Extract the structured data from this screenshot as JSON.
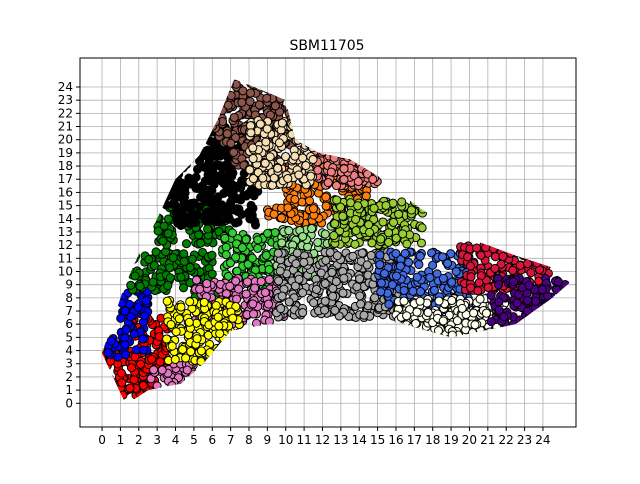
{
  "chart_data": {
    "type": "scatter",
    "title": "SBM11705",
    "xlabel": "",
    "ylabel": "",
    "xlim": [
      -1.2,
      25.8
    ],
    "ylim": [
      -1.8,
      26.2
    ],
    "x_ticks": [
      "0",
      "1",
      "2",
      "3",
      "4",
      "5",
      "6",
      "7",
      "8",
      "9",
      "10",
      "11",
      "12",
      "13",
      "14",
      "15",
      "16",
      "17",
      "18",
      "19",
      "20",
      "21",
      "22",
      "23",
      "24"
    ],
    "y_ticks": [
      "0",
      "1",
      "2",
      "3",
      "4",
      "5",
      "6",
      "7",
      "8",
      "9",
      "10",
      "11",
      "12",
      "13",
      "14",
      "15",
      "16",
      "17",
      "18",
      "19",
      "20",
      "21",
      "22",
      "23",
      "24"
    ],
    "grid": true,
    "legend": "none",
    "point_style": {
      "edge_color": "#000000",
      "radius_data_units": 0.22
    },
    "series": [
      {
        "color": "#ff0000",
        "regions": [
          [
            0.0,
            0.5,
            3.2,
            4.0
          ],
          [
            1.5,
            2.5,
            3.8,
            6.5
          ]
        ],
        "density": 3
      },
      {
        "color": "#0000ff",
        "regions": [
          [
            1.0,
            4.0,
            2.5,
            8.6
          ],
          [
            0.3,
            3.5,
            1.3,
            5.0
          ]
        ],
        "density": 3
      },
      {
        "color": "#008000",
        "regions": [
          [
            1.5,
            8.5,
            6.0,
            11.5
          ],
          [
            3.0,
            12.0,
            7.0,
            15.0
          ],
          [
            5.0,
            8.0,
            6.5,
            9.0
          ]
        ],
        "density": 3
      },
      {
        "color": "#000000",
        "regions": [
          [
            4.0,
            13.5,
            8.5,
            19.5
          ],
          [
            5.0,
            19.0,
            8.0,
            21.0
          ],
          [
            3.0,
            15.0,
            4.5,
            17.0
          ]
        ],
        "density": 3
      },
      {
        "color": "#8c564b",
        "regions": [
          [
            6.0,
            19.5,
            10.5,
            25.0
          ],
          [
            7.0,
            18.0,
            10.0,
            20.0
          ]
        ],
        "density": 3
      },
      {
        "color": "#ff7f0e",
        "regions": [
          [
            10.0,
            13.5,
            14.5,
            18.0
          ],
          [
            9.0,
            14.0,
            10.5,
            15.5
          ]
        ],
        "density": 3
      },
      {
        "color": "#f08080",
        "regions": [
          [
            11.5,
            16.5,
            15.0,
            19.5
          ]
        ],
        "density": 4
      },
      {
        "color": "#f5deb3",
        "regions": [
          [
            8.0,
            16.5,
            11.5,
            21.5
          ]
        ],
        "density": 4
      },
      {
        "color": "#32cd32",
        "regions": [
          [
            6.5,
            8.5,
            10.0,
            13.0
          ]
        ],
        "density": 3
      },
      {
        "color": "#98df8a",
        "regions": [
          [
            9.5,
            9.5,
            12.5,
            13.5
          ]
        ],
        "density": 3
      },
      {
        "color": "#9acd32",
        "regions": [
          [
            12.5,
            12.0,
            17.5,
            15.5
          ]
        ],
        "density": 4
      },
      {
        "color": "#e377c2",
        "regions": [
          [
            5.0,
            6.0,
            10.0,
            9.5
          ],
          [
            2.5,
            1.3,
            5.0,
            3.0
          ]
        ],
        "density": 3
      },
      {
        "color": "#ffff00",
        "regions": [
          [
            3.5,
            3.0,
            7.5,
            7.8
          ]
        ],
        "density": 3
      },
      {
        "color": "#a9a9a9",
        "regions": [
          [
            9.5,
            6.5,
            16.0,
            11.5
          ],
          [
            15.0,
            7.0,
            17.0,
            9.0
          ]
        ],
        "density": 3
      },
      {
        "color": "#4169e1",
        "regions": [
          [
            15.0,
            7.5,
            20.0,
            11.5
          ],
          [
            17.0,
            5.5,
            19.0,
            7.5
          ]
        ],
        "density": 3
      },
      {
        "color": "#fffff0",
        "regions": [
          [
            16.0,
            5.0,
            22.0,
            8.0
          ]
        ],
        "density": 4
      },
      {
        "color": "#dc143c",
        "regions": [
          [
            19.5,
            8.5,
            24.5,
            12.0
          ]
        ],
        "density": 3
      },
      {
        "color": "#4b0082",
        "regions": [
          [
            21.0,
            6.0,
            25.5,
            9.5
          ]
        ],
        "density": 3
      }
    ],
    "outline": [
      [
        1.3,
        -0.1
      ],
      [
        0.0,
        3.8
      ],
      [
        1.2,
        8.8
      ],
      [
        2.0,
        11.3
      ],
      [
        3.0,
        14.0
      ],
      [
        4.0,
        17.0
      ],
      [
        5.3,
        18.8
      ],
      [
        6.3,
        21.5
      ],
      [
        7.2,
        24.6
      ],
      [
        10.0,
        23.0
      ],
      [
        10.5,
        20.0
      ],
      [
        11.8,
        19.0
      ],
      [
        13.5,
        18.5
      ],
      [
        15.3,
        17.0
      ],
      [
        17.3,
        14.8
      ],
      [
        20.0,
        12.5
      ],
      [
        22.5,
        11.2
      ],
      [
        24.5,
        10.3
      ],
      [
        25.5,
        9.2
      ],
      [
        24.5,
        8.0
      ],
      [
        22.5,
        6.0
      ],
      [
        19.0,
        5.0
      ],
      [
        16.0,
        6.2
      ],
      [
        12.0,
        6.0
      ],
      [
        9.0,
        6.0
      ],
      [
        7.0,
        5.5
      ],
      [
        5.5,
        3.0
      ],
      [
        4.3,
        1.5
      ],
      [
        2.5,
        1.0
      ]
    ]
  }
}
